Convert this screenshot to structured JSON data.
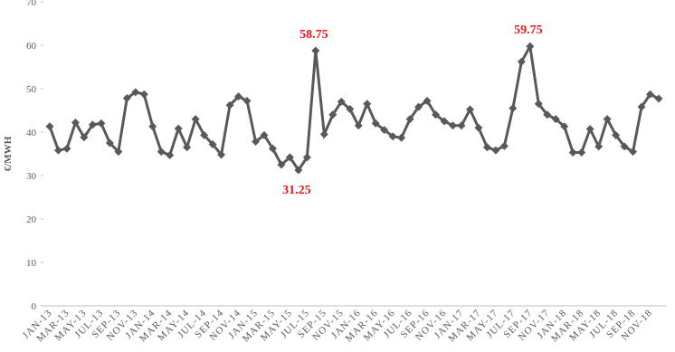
{
  "chart_data": {
    "type": "line",
    "y_label": "€/MWH",
    "categories": [
      "JAN-13",
      null,
      "MAR-13",
      null,
      "MAY-13",
      null,
      "JUL-13",
      null,
      "SEP-13",
      null,
      "NOV-13",
      null,
      "JAN-14",
      null,
      "MAR-14",
      null,
      "MAY-14",
      null,
      "JUL-14",
      null,
      "SEP-14",
      null,
      "NOV-14",
      null,
      "JAN-15",
      null,
      "MAR-15",
      null,
      "MAY-15",
      null,
      "JUL-15",
      null,
      "SEP-15",
      null,
      "NOV-15",
      null,
      "JAN-16",
      null,
      "MAR-16",
      null,
      "MAY-16",
      null,
      "JUL-16",
      null,
      "SEP-16",
      null,
      "NOV-16",
      null,
      "JAN-17",
      null,
      "MAR-17",
      null,
      "MAY-17",
      null,
      "JUL-17",
      null,
      "SEP-17",
      null,
      "NOV-17",
      null,
      "JAN-18",
      null,
      "MAR-18",
      null,
      "MAY-18",
      null,
      "JUL-18",
      null,
      "SEP-18",
      null,
      "NOV-18",
      null
    ],
    "values": [
      41.3,
      35.8,
      36.2,
      42.2,
      38.8,
      41.7,
      42,
      37.5,
      35.5,
      47.8,
      49.2,
      48.7,
      41.3,
      35.5,
      34.7,
      40.8,
      36.5,
      43,
      39.3,
      37.2,
      34.8,
      46.2,
      48.2,
      47.2,
      37.8,
      39.3,
      36.2,
      32.5,
      34.2,
      31.25,
      34.2,
      58.75,
      39.5,
      44,
      47,
      45.3,
      41.5,
      46.5,
      42,
      40.5,
      39,
      38.7,
      43,
      45.8,
      47.2,
      44,
      42.5,
      41.5,
      41.5,
      45.2,
      41,
      36.5,
      35.8,
      36.8,
      45.5,
      56.2,
      59.75,
      46.5,
      44,
      43,
      41.3,
      35.3,
      35.3,
      40.7,
      36.7,
      43,
      39.3,
      36.7,
      35.5,
      45.8,
      48.7,
      47.7
    ],
    "value_labels": [
      null,
      null,
      null,
      null,
      null,
      null,
      null,
      null,
      null,
      null,
      null,
      null,
      null,
      null,
      null,
      null,
      null,
      null,
      null,
      null,
      null,
      null,
      null,
      null,
      null,
      null,
      null,
      null,
      null,
      "31.25",
      null,
      "58.75",
      null,
      null,
      null,
      null,
      null,
      null,
      null,
      null,
      null,
      null,
      null,
      null,
      null,
      null,
      null,
      null,
      null,
      null,
      null,
      null,
      null,
      null,
      null,
      null,
      "59.75",
      null,
      null,
      null,
      null,
      null,
      null,
      null,
      null,
      null,
      null,
      null,
      null,
      null,
      null,
      null
    ],
    "color": "#595959",
    "label_color": "#e8141c",
    "ylim": [
      0,
      70
    ],
    "yticks": [
      0,
      10,
      20,
      30,
      40,
      50,
      60,
      70
    ],
    "grid": false
  }
}
